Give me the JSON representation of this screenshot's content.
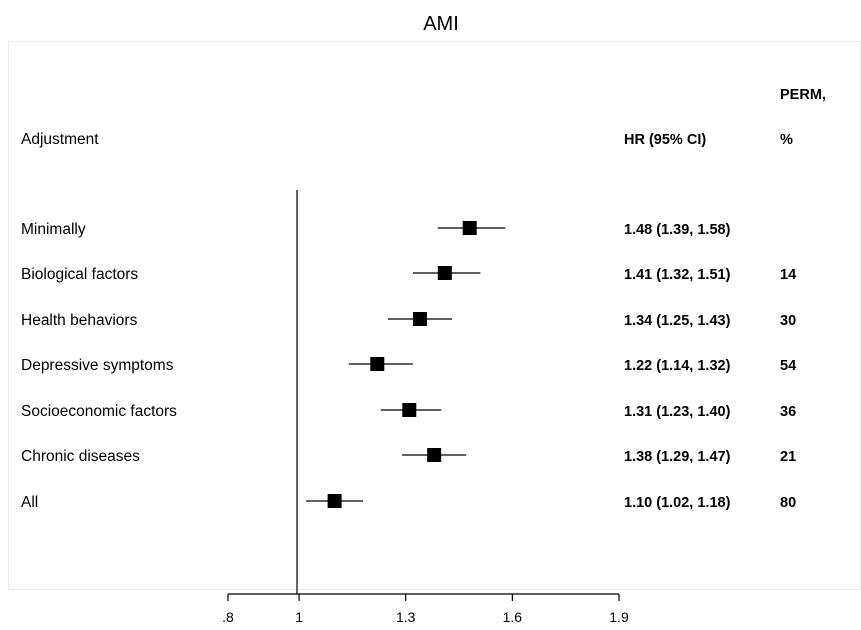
{
  "chart_data": {
    "type": "forest",
    "title": "AMI",
    "headers": {
      "adjustment": "Adjustment",
      "hr": "HR (95% CI)",
      "perm_line1": "PERM,",
      "perm_line2": "%"
    },
    "rows": [
      {
        "label": "Minimally",
        "hr": 1.48,
        "lo": 1.39,
        "hi": 1.58,
        "hr_text": "1.48 (1.39, 1.58)",
        "perm": ""
      },
      {
        "label": "Biological factors",
        "hr": 1.41,
        "lo": 1.32,
        "hi": 1.51,
        "hr_text": "1.41 (1.32, 1.51)",
        "perm": "14"
      },
      {
        "label": "Health behaviors",
        "hr": 1.34,
        "lo": 1.25,
        "hi": 1.43,
        "hr_text": "1.34 (1.25, 1.43)",
        "perm": "30"
      },
      {
        "label": "Depressive symptoms",
        "hr": 1.22,
        "lo": 1.14,
        "hi": 1.32,
        "hr_text": "1.22 (1.14, 1.32)",
        "perm": "54"
      },
      {
        "label": "Socioeconomic factors",
        "hr": 1.31,
        "lo": 1.23,
        "hi": 1.4,
        "hr_text": "1.31 (1.23, 1.40)",
        "perm": "36"
      },
      {
        "label": "Chronic diseases",
        "hr": 1.38,
        "lo": 1.29,
        "hi": 1.47,
        "hr_text": "1.38 (1.29, 1.47)",
        "perm": "21"
      },
      {
        "label": "All",
        "hr": 1.1,
        "lo": 1.02,
        "hi": 1.18,
        "hr_text": "1.10 (1.02, 1.18)",
        "perm": "80"
      }
    ],
    "x_ticks": [
      {
        "value": 0.8,
        "label": ".8"
      },
      {
        "value": 1.0,
        "label": "1"
      },
      {
        "value": 1.3,
        "label": "1.3"
      },
      {
        "value": 1.6,
        "label": "1.6"
      },
      {
        "value": 1.9,
        "label": "1.9"
      }
    ],
    "xlim": [
      0.8,
      1.9
    ],
    "reference_line": 1.0
  }
}
